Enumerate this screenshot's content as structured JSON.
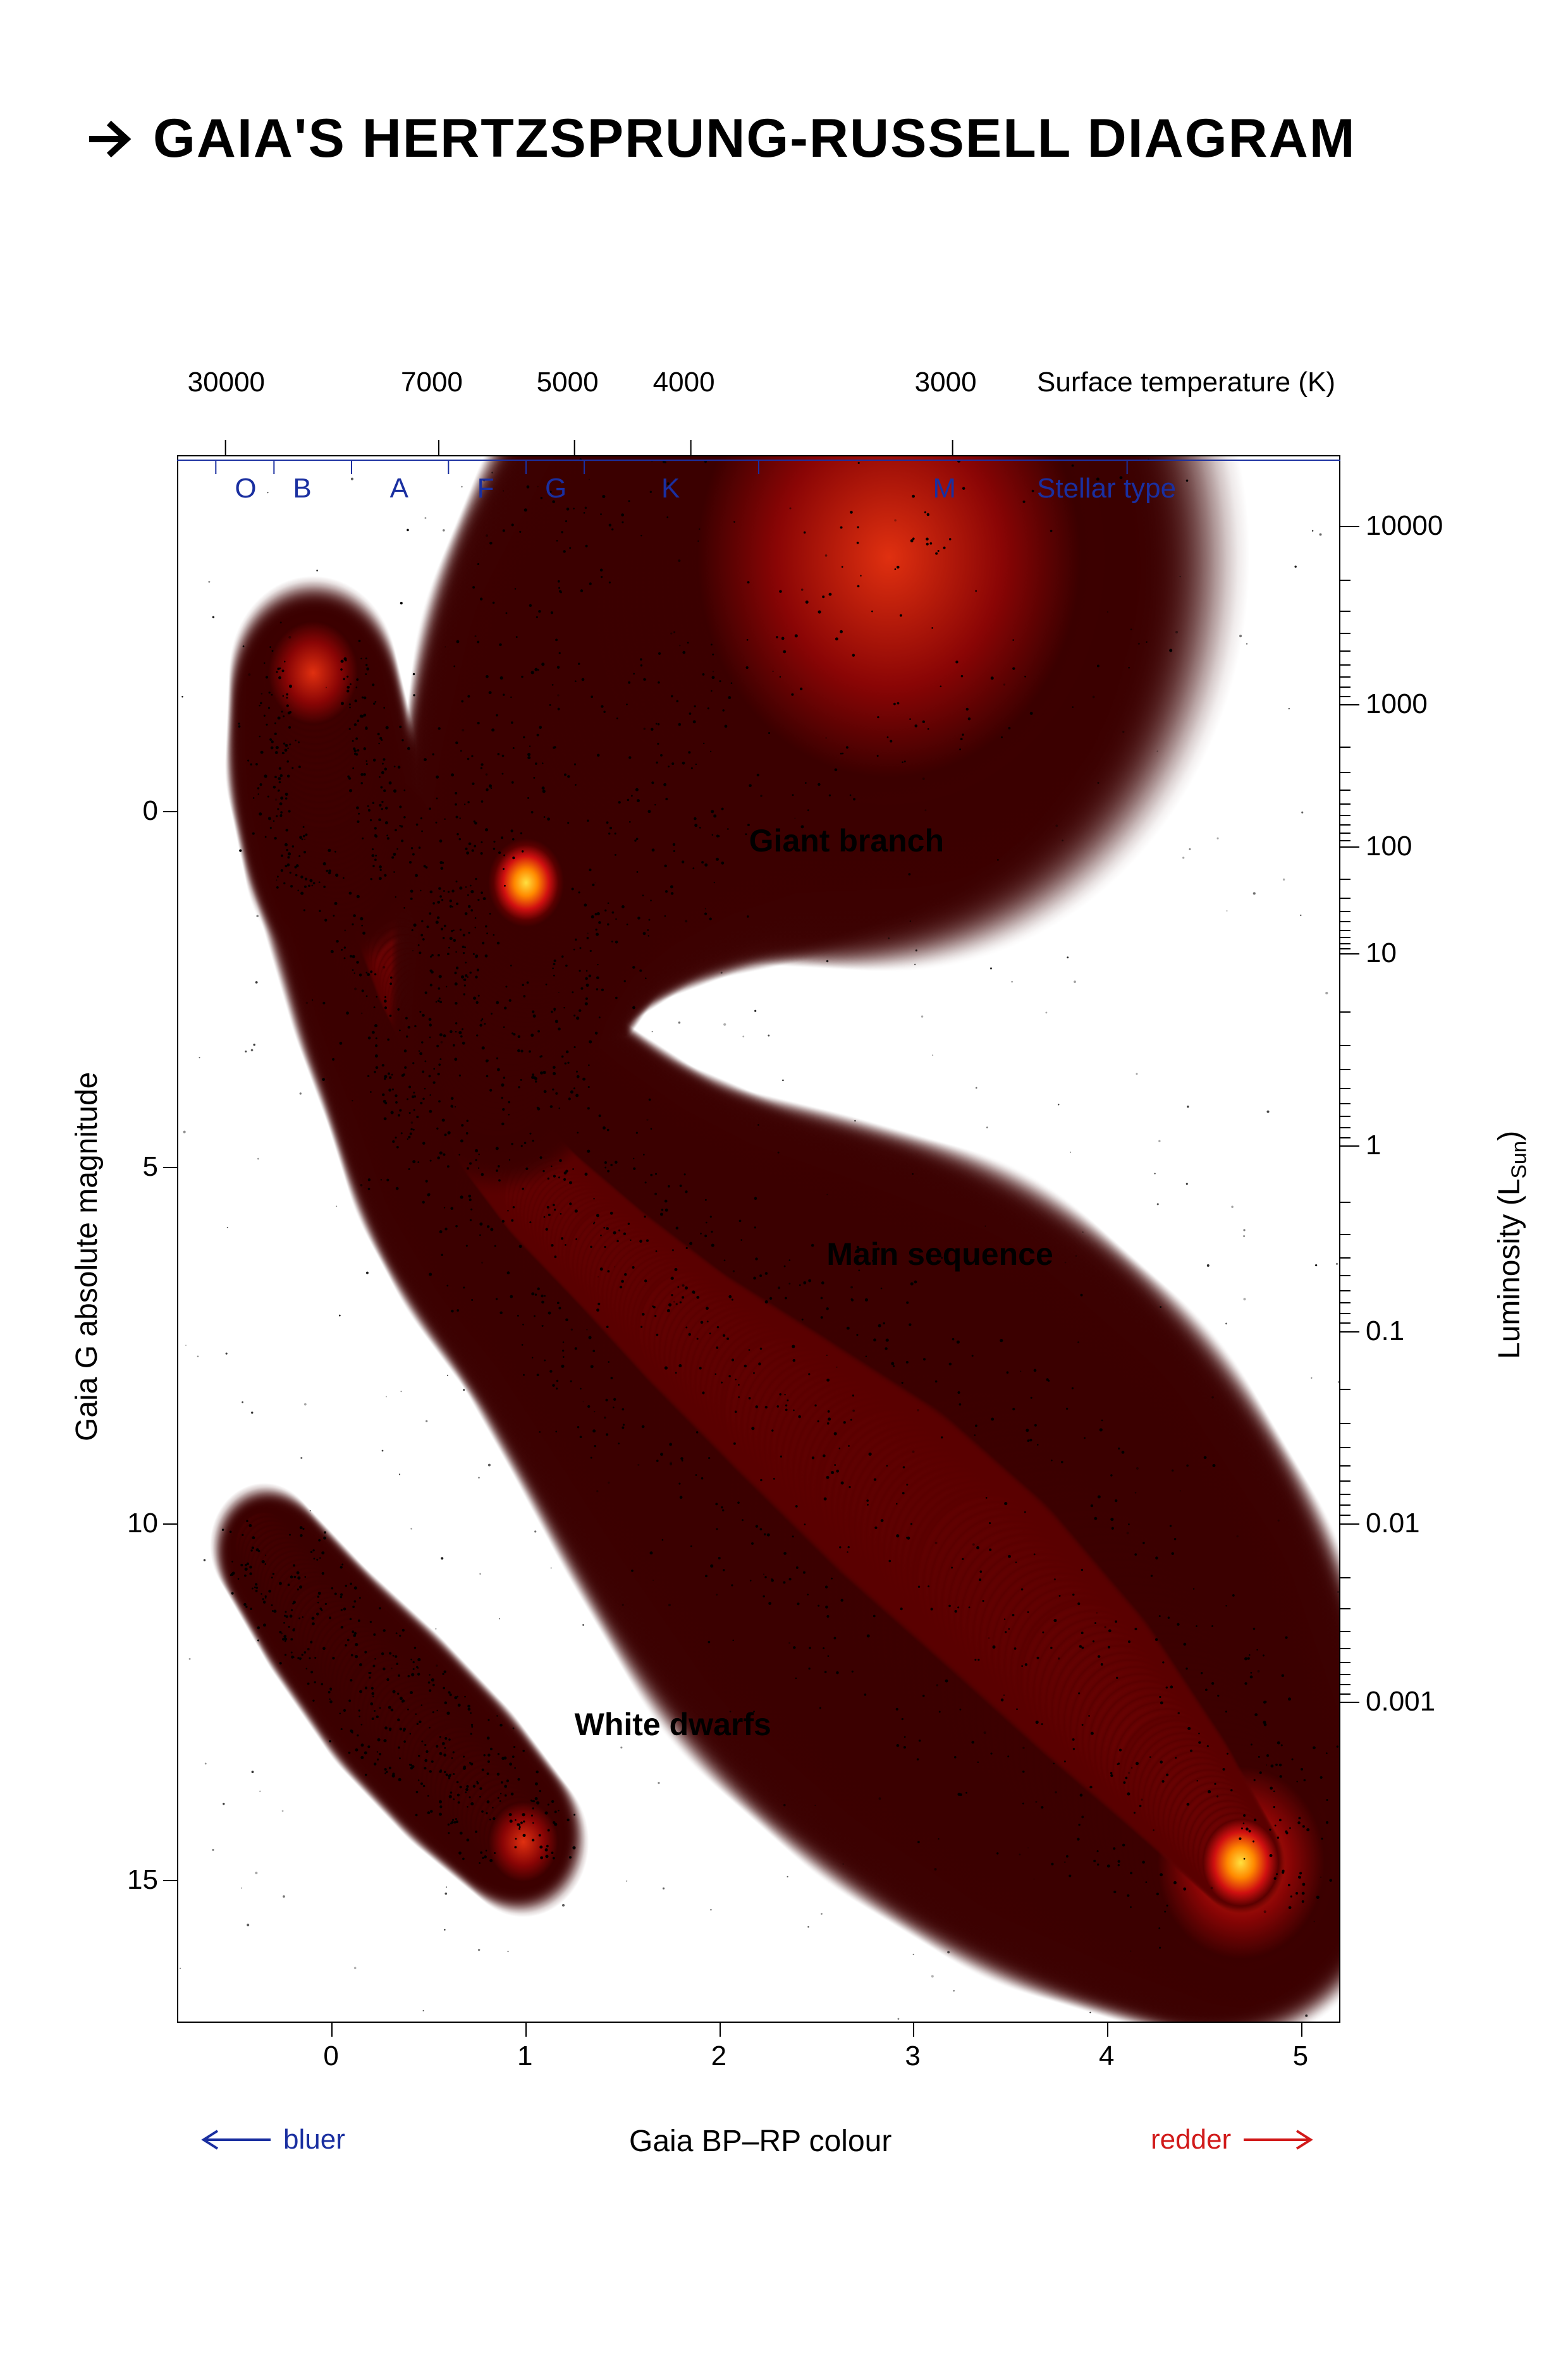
{
  "title": "GAIA'S HERTZSPRUNG-RUSSELL DIAGRAM",
  "colors": {
    "title_arrow": "#000000",
    "title_text": "#000000",
    "axis_text": "#000000",
    "stellar_blue": "#1a2fa0",
    "redder_red": "#d11a1a",
    "plot_bg": "#ffffff",
    "plot_border": "#000000",
    "density_low": "#3b0000",
    "density_mid": "#b81010",
    "density_high": "#ff5a00",
    "density_peak": "#ffe040",
    "scatter_point": "#000000"
  },
  "chart": {
    "type": "scatter-density",
    "xlim": [
      -0.8,
      5.2
    ],
    "ylim_mag": [
      17.0,
      -5.0
    ],
    "x_ticks": [
      0,
      1,
      2,
      3,
      4,
      5
    ],
    "y_mag_ticks": [
      0,
      5,
      10,
      15
    ],
    "top_temp_ticks": [
      {
        "label": "30000",
        "x": -0.55
      },
      {
        "label": "7000",
        "x": 0.55
      },
      {
        "label": "5000",
        "x": 1.25
      },
      {
        "label": "4000",
        "x": 1.85
      },
      {
        "label": "3000",
        "x": 3.2
      }
    ],
    "top_temp_title": "Surface temperature (K)",
    "stellar_types": [
      {
        "label": "O",
        "x": -0.45
      },
      {
        "label": "B",
        "x": -0.15
      },
      {
        "label": "A",
        "x": 0.35
      },
      {
        "label": "F",
        "x": 0.8
      },
      {
        "label": "G",
        "x": 1.15
      },
      {
        "label": "K",
        "x": 1.75
      },
      {
        "label": "M",
        "x": 3.15
      }
    ],
    "stellar_tick_boundaries": [
      -0.6,
      -0.3,
      0.1,
      0.6,
      1.0,
      1.3,
      2.2,
      4.1
    ],
    "stellar_title": "Stellar type",
    "right_lum_ticks": [
      {
        "label": "10000",
        "mag": -4.0
      },
      {
        "label": "1000",
        "mag": -1.5
      },
      {
        "label": "100",
        "mag": 0.5
      },
      {
        "label": "10",
        "mag": 2.0
      },
      {
        "label": "1",
        "mag": 4.7
      },
      {
        "label": "0.1",
        "mag": 7.3
      },
      {
        "label": "0.01",
        "mag": 10.0
      },
      {
        "label": "0.001",
        "mag": 12.5
      }
    ],
    "right_lum_minor_per_decade": [
      2,
      3,
      4,
      5,
      6,
      7,
      8,
      9
    ],
    "x_axis_label": "Gaia BP–RP colour",
    "y_left_label": "Gaia G absolute magnitude",
    "y_right_label_prefix": "Luminosity (L",
    "y_right_label_sub": "Sun",
    "y_right_label_suffix": ")",
    "bluer_label": "bluer",
    "redder_label": "redder",
    "annotations": [
      {
        "key": "giant",
        "text": "Giant branch",
        "x": 2.15,
        "mag": 0.4
      },
      {
        "key": "main",
        "text": "Main sequence",
        "x": 2.55,
        "mag": 6.2
      },
      {
        "key": "wd",
        "text": "White dwarfs",
        "x": 1.25,
        "mag": 12.8
      }
    ],
    "density_regions": {
      "main_sequence_spine": [
        {
          "x": 0.1,
          "mag": 0.4,
          "w": 0.35
        },
        {
          "x": 0.4,
          "mag": 2.4,
          "w": 0.4
        },
        {
          "x": 0.65,
          "mag": 3.6,
          "w": 0.45
        },
        {
          "x": 0.85,
          "mag": 4.6,
          "w": 0.5
        },
        {
          "x": 1.1,
          "mag": 5.4,
          "w": 0.55
        },
        {
          "x": 1.45,
          "mag": 6.3,
          "w": 0.6
        },
        {
          "x": 1.85,
          "mag": 7.3,
          "w": 0.7
        },
        {
          "x": 2.35,
          "mag": 8.4,
          "w": 0.85
        },
        {
          "x": 2.9,
          "mag": 9.6,
          "w": 1.0
        },
        {
          "x": 3.4,
          "mag": 10.8,
          "w": 1.0
        },
        {
          "x": 3.9,
          "mag": 12.2,
          "w": 0.9
        },
        {
          "x": 4.35,
          "mag": 13.6,
          "w": 0.7
        },
        {
          "x": 4.7,
          "mag": 14.8,
          "w": 0.5
        }
      ],
      "giant_branch_spine": [
        {
          "x": 0.85,
          "mag": 3.6,
          "w": 0.4
        },
        {
          "x": 0.95,
          "mag": 2.2,
          "w": 0.45
        },
        {
          "x": 1.1,
          "mag": 0.9,
          "w": 0.55
        },
        {
          "x": 1.35,
          "mag": -0.3,
          "w": 0.7
        },
        {
          "x": 1.7,
          "mag": -1.6,
          "w": 0.9
        },
        {
          "x": 2.2,
          "mag": -2.8,
          "w": 1.1
        },
        {
          "x": 2.9,
          "mag": -3.6,
          "w": 1.3
        }
      ],
      "upper_blue_spine": [
        {
          "x": 0.05,
          "mag": 0.7,
          "w": 0.35
        },
        {
          "x": -0.05,
          "mag": -0.6,
          "w": 0.35
        },
        {
          "x": -0.1,
          "mag": -2.0,
          "w": 0.3
        }
      ],
      "white_dwarf_spine": [
        {
          "x": -0.35,
          "mag": 10.3,
          "w": 0.25
        },
        {
          "x": -0.05,
          "mag": 11.4,
          "w": 0.3
        },
        {
          "x": 0.3,
          "mag": 12.5,
          "w": 0.35
        },
        {
          "x": 0.65,
          "mag": 13.5,
          "w": 0.35
        },
        {
          "x": 1.0,
          "mag": 14.5,
          "w": 0.3
        }
      ]
    },
    "scatter_halo_density": 2200
  }
}
